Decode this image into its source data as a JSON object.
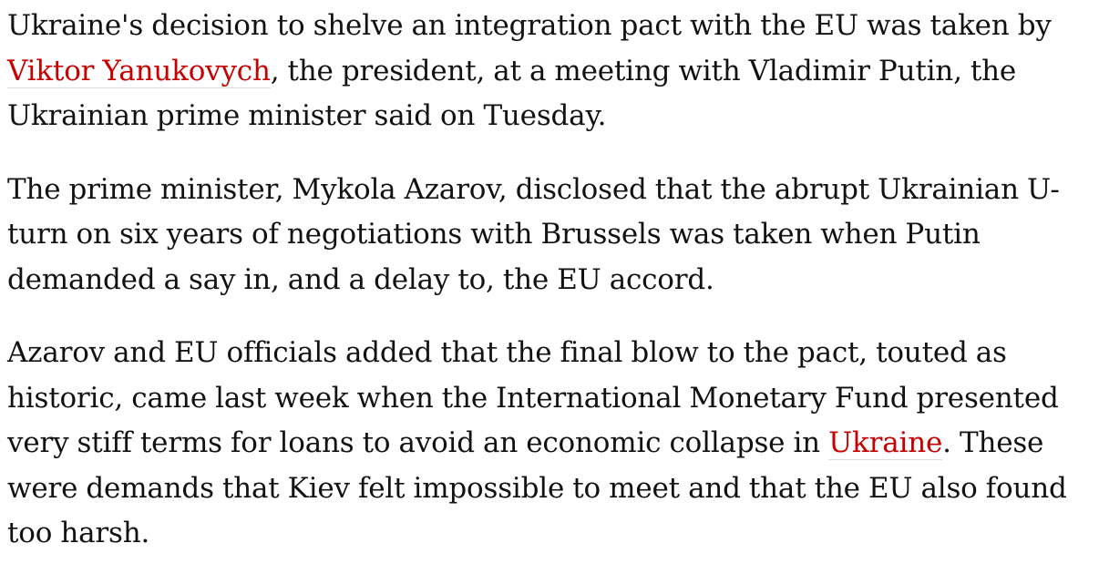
{
  "article": {
    "paragraphs": [
      {
        "segments": [
          {
            "text": "Ukraine's decision to shelve an integration pact with the EU was taken by ",
            "link": false
          },
          {
            "text": "Viktor Yanukovych",
            "link": true
          },
          {
            "text": ", the president, at a meeting with Vladimir Putin, the Ukrainian prime minister said on Tuesday.",
            "link": false
          }
        ]
      },
      {
        "segments": [
          {
            "text": "The prime minister, Mykola Azarov, disclosed that the abrupt Ukrainian U-turn on six years of negotiations with Brussels was taken when Putin demanded a say in, and a delay to, the EU accord.",
            "link": false
          }
        ]
      },
      {
        "segments": [
          {
            "text": "Azarov and EU officials added that the final blow to the pact, touted as historic, came last week when the International Monetary Fund presented very stiff terms for loans to avoid an economic collapse in ",
            "link": false
          },
          {
            "text": "Ukraine",
            "link": true
          },
          {
            "text": ". These were demands that Kiev felt impossible to meet and that the EU also found too harsh.",
            "link": false
          }
        ]
      }
    ],
    "link_color": "#c70000",
    "text_color": "#121212"
  }
}
